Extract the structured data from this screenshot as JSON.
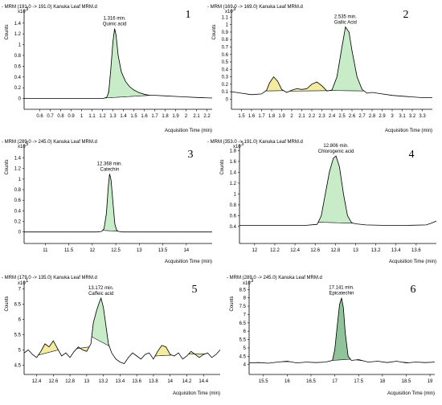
{
  "colors": {
    "main_peak_fill": "#c8ebc8",
    "main_peak_fill_dark": "#8fc49a",
    "minor_peak_fill": "#f5eba0",
    "trace": "#000000",
    "peak_outline": "#1e6b3a"
  },
  "chart_data": [
    {
      "type": "area",
      "panel_number": "1",
      "title": "- MRM (191.0 -> 191.0) Kanuka Leaf MRM.d",
      "peak_label": {
        "time": "1.316 min.",
        "name": "Quinic acid",
        "x": 1.316
      },
      "ylabel": "Counts",
      "multiplier": "x10",
      "multiplier_exp": "3",
      "xlabel": "Acquisition Time (min)",
      "xlim": [
        0.45,
        2.25
      ],
      "ylim": [
        -0.05,
        1.62
      ],
      "xticks": [
        "0.6",
        "0.7",
        "0.8",
        "0.9",
        "1",
        "1.1",
        "1.2",
        "1.3",
        "1.4",
        "1.5",
        "1.6",
        "1.7",
        "1.8",
        "1.9",
        "2",
        "2.1",
        "2.2"
      ],
      "yticks": [
        "0",
        "0.2",
        "0.4",
        "0.6",
        "0.8",
        "1",
        "1.2",
        "1.4"
      ],
      "trace": {
        "x": [
          0.45,
          1.0,
          1.2,
          1.24,
          1.26,
          1.28,
          1.3,
          1.316,
          1.33,
          1.35,
          1.38,
          1.42,
          1.46,
          1.5,
          1.55,
          1.6,
          1.65,
          1.7,
          1.8,
          1.9,
          2.0,
          2.1,
          2.25
        ],
        "y": [
          0.0,
          0.0,
          0.0,
          0.02,
          0.12,
          0.55,
          1.05,
          1.3,
          1.18,
          0.8,
          0.5,
          0.32,
          0.22,
          0.16,
          0.11,
          0.08,
          0.06,
          0.06,
          0.05,
          0.04,
          0.03,
          0.02,
          0.01
        ]
      },
      "peaks": [
        {
          "start": 1.22,
          "end": 1.66,
          "fill": "main"
        }
      ]
    },
    {
      "type": "area",
      "panel_number": "2",
      "title": "- MRM (169.0 -> 169.0) Kanuka Leaf MRM.d",
      "peak_label": {
        "time": "2.535 min.",
        "name": "Gallic Acid",
        "x": 2.535
      },
      "ylabel": "Counts",
      "multiplier": "x10",
      "multiplier_exp": "3",
      "xlabel": "Acquisition Time (min)",
      "xlim": [
        1.4,
        3.4
      ],
      "ylim": [
        -0.05,
        1.18
      ],
      "xticks": [
        "1.5",
        "1.6",
        "1.7",
        "1.8",
        "1.9",
        "2",
        "2.1",
        "2.2",
        "2.3",
        "2.4",
        "2.5",
        "2.6",
        "2.7",
        "2.8",
        "2.9",
        "3",
        "3.1",
        "3.2",
        "3.3"
      ],
      "yticks": [
        "0",
        "0.1",
        "0.2",
        "0.3",
        "0.4",
        "0.5",
        "0.6",
        "0.7",
        "0.8",
        "0.9",
        "1",
        "1.1"
      ],
      "trace": {
        "x": [
          1.4,
          1.5,
          1.6,
          1.7,
          1.75,
          1.78,
          1.82,
          1.86,
          1.9,
          1.95,
          2.0,
          2.05,
          2.1,
          2.15,
          2.2,
          2.25,
          2.3,
          2.35,
          2.4,
          2.45,
          2.5,
          2.535,
          2.57,
          2.6,
          2.65,
          2.7,
          2.75,
          2.8,
          2.9,
          3.0,
          3.1,
          3.2,
          3.3,
          3.4
        ],
        "y": [
          0.1,
          0.08,
          0.06,
          0.07,
          0.12,
          0.22,
          0.3,
          0.24,
          0.13,
          0.09,
          0.12,
          0.14,
          0.13,
          0.14,
          0.2,
          0.23,
          0.18,
          0.11,
          0.12,
          0.3,
          0.7,
          0.97,
          0.9,
          0.65,
          0.3,
          0.13,
          0.08,
          0.09,
          0.07,
          0.05,
          0.04,
          0.03,
          0.02,
          0.02
        ]
      },
      "peaks": [
        {
          "start": 1.74,
          "end": 1.92,
          "fill": "minor"
        },
        {
          "start": 1.98,
          "end": 2.37,
          "fill": "minor"
        },
        {
          "start": 2.38,
          "end": 2.72,
          "fill": "main"
        }
      ]
    },
    {
      "type": "area",
      "panel_number": "3",
      "title": "- MRM (289.0 -> 245.0) Kanuka Leaf MRM.d",
      "peak_label": {
        "time": "12.368 min.",
        "name": "Catechin",
        "x": 12.368
      },
      "ylabel": "Counts",
      "multiplier": "x10",
      "multiplier_exp": "5",
      "xlabel": "Acquisition Time (min)",
      "xlim": [
        10.55,
        14.55
      ],
      "ylim": [
        -0.05,
        1.62
      ],
      "xticks": [
        "11",
        "11.5",
        "12",
        "12.5",
        "13",
        "13.5",
        "14"
      ],
      "yticks": [
        "0",
        "0.2",
        "0.4",
        "0.6",
        "0.8",
        "1",
        "1.2",
        "1.4"
      ],
      "trace": {
        "x": [
          10.55,
          11.5,
          12.1,
          12.2,
          12.25,
          12.3,
          12.34,
          12.368,
          12.4,
          12.44,
          12.48,
          12.52,
          12.56,
          12.65,
          13.0,
          14.0,
          14.55
        ],
        "y": [
          0.0,
          0.0,
          0.0,
          0.01,
          0.06,
          0.35,
          0.85,
          1.1,
          0.98,
          0.55,
          0.15,
          0.03,
          0.01,
          0.0,
          0.0,
          0.0,
          0.0
        ]
      },
      "peaks": [
        {
          "start": 12.22,
          "end": 12.55,
          "fill": "main"
        }
      ]
    },
    {
      "type": "area",
      "panel_number": "4",
      "title": "- MRM (353.0 -> 191.0) Kanuka Leaf MRM.d",
      "peak_label": {
        "time": "12.806 min.",
        "name": "Chlorogenic acid",
        "x": 12.806
      },
      "ylabel": "Counts",
      "multiplier": "x10",
      "multiplier_exp": "3",
      "xlabel": "Acquisition Time (min)",
      "xlim": [
        11.85,
        13.8
      ],
      "ylim": [
        0.25,
        1.88
      ],
      "xticks": [
        "12",
        "12.2",
        "12.4",
        "12.6",
        "12.8",
        "13",
        "13.2",
        "13.4",
        "13.6"
      ],
      "yticks": [
        "0.4",
        "0.6",
        "0.8",
        "1",
        "1.2",
        "1.4",
        "1.6",
        "1.8"
      ],
      "trace": {
        "x": [
          11.85,
          12.2,
          12.5,
          12.62,
          12.66,
          12.7,
          12.74,
          12.78,
          12.806,
          12.84,
          12.88,
          12.92,
          12.96,
          13.0,
          13.1,
          13.3,
          13.5,
          13.7,
          13.75,
          13.8
        ],
        "y": [
          0.42,
          0.42,
          0.42,
          0.44,
          0.6,
          1.0,
          1.4,
          1.66,
          1.7,
          1.5,
          1.0,
          0.6,
          0.47,
          0.45,
          0.43,
          0.42,
          0.42,
          0.43,
          0.46,
          0.5
        ]
      },
      "peaks": [
        {
          "start": 12.63,
          "end": 12.98,
          "fill": "main"
        }
      ]
    },
    {
      "type": "area",
      "panel_number": "5",
      "title": "- MRM (179.0 -> 135.0) Kanuka Leaf MRM.d",
      "peak_label": {
        "time": "13.172 min.",
        "name": "Caffeic acid",
        "x": 13.172
      },
      "ylabel": "Counts",
      "multiplier": "x10",
      "multiplier_exp": "1",
      "xlabel": "Acquisition Time (min)",
      "xlim": [
        12.25,
        14.6
      ],
      "ylim": [
        4.3,
        7.2
      ],
      "xticks": [
        "12.4",
        "12.6",
        "12.8",
        "13",
        "13.2",
        "13.4",
        "13.6",
        "13.8",
        "14",
        "14.2",
        "14.4"
      ],
      "yticks": [
        "4.5",
        "5",
        "5.5",
        "6",
        "6.5",
        "7"
      ],
      "trace": {
        "x": [
          12.25,
          12.3,
          12.35,
          12.4,
          12.45,
          12.5,
          12.55,
          12.6,
          12.65,
          12.7,
          12.75,
          12.8,
          12.85,
          12.9,
          12.95,
          13.0,
          13.05,
          13.08,
          13.12,
          13.15,
          13.172,
          13.2,
          13.23,
          13.26,
          13.3,
          13.35,
          13.4,
          13.45,
          13.5,
          13.55,
          13.6,
          13.65,
          13.7,
          13.75,
          13.8,
          13.85,
          13.9,
          13.95,
          14.0,
          14.05,
          14.1,
          14.15,
          14.2,
          14.25,
          14.3,
          14.35,
          14.4,
          14.45,
          14.5,
          14.55,
          14.6
        ],
        "y": [
          4.9,
          5.0,
          4.85,
          4.75,
          4.95,
          5.2,
          5.1,
          5.3,
          5.05,
          4.8,
          4.9,
          4.75,
          4.95,
          5.1,
          5.0,
          4.95,
          5.2,
          5.9,
          6.3,
          6.55,
          6.7,
          6.4,
          5.8,
          5.2,
          4.9,
          4.7,
          4.6,
          4.55,
          4.75,
          4.9,
          4.8,
          4.7,
          4.85,
          4.9,
          4.7,
          4.95,
          5.15,
          5.1,
          4.85,
          4.8,
          4.9,
          4.7,
          4.8,
          4.95,
          4.85,
          4.75,
          4.85,
          4.9,
          4.75,
          4.85,
          5.0
        ]
      },
      "peaks": [
        {
          "start": 12.42,
          "end": 12.66,
          "fill": "minor"
        },
        {
          "start": 12.88,
          "end": 13.03,
          "fill": "minor"
        },
        {
          "start": 13.06,
          "end": 13.27,
          "fill": "main"
        },
        {
          "start": 13.82,
          "end": 14.02,
          "fill": "minor"
        },
        {
          "start": 14.22,
          "end": 14.42,
          "fill": "minor"
        }
      ]
    },
    {
      "type": "area",
      "panel_number": "6",
      "title": "- MRM (289.0 -> 245.0) Kanuka Leaf MRM.d",
      "peak_label": {
        "time": "17.141 min.",
        "name": "Epicatechin",
        "x": 17.141
      },
      "ylabel": "Counts",
      "multiplier": "x10",
      "multiplier_exp": "3",
      "xlabel": "Acquisition Time (min)",
      "xlim": [
        15.2,
        19.1
      ],
      "ylim": [
        3.6,
        8.9
      ],
      "xticks": [
        "15.5",
        "16",
        "16.5",
        "17",
        "17.5",
        "18",
        "18.5",
        "19"
      ],
      "yticks": [
        "4",
        "4.5",
        "5",
        "5.5",
        "6",
        "6.5",
        "7",
        "7.5",
        "8",
        "8.5"
      ],
      "trace": {
        "x": [
          15.2,
          15.4,
          15.6,
          15.8,
          16.0,
          16.2,
          16.4,
          16.6,
          16.8,
          16.95,
          17.0,
          17.05,
          17.1,
          17.141,
          17.18,
          17.22,
          17.28,
          17.35,
          17.5,
          17.7,
          17.9,
          18.1,
          18.3,
          18.5,
          18.7,
          18.9,
          19.1
        ],
        "y": [
          4.1,
          4.12,
          4.08,
          4.15,
          4.2,
          4.1,
          4.15,
          4.12,
          4.15,
          4.25,
          4.9,
          6.3,
          7.6,
          8.0,
          7.4,
          5.9,
          4.5,
          4.25,
          4.3,
          4.15,
          4.2,
          4.12,
          4.2,
          4.1,
          4.15,
          4.12,
          4.15
        ]
      },
      "peaks": [
        {
          "start": 15.9,
          "end": 16.05,
          "fill": "minor"
        },
        {
          "start": 16.95,
          "end": 17.33,
          "fill": "dark"
        },
        {
          "start": 17.45,
          "end": 17.6,
          "fill": "minor"
        },
        {
          "start": 18.4,
          "end": 18.55,
          "fill": "minor"
        }
      ]
    }
  ]
}
